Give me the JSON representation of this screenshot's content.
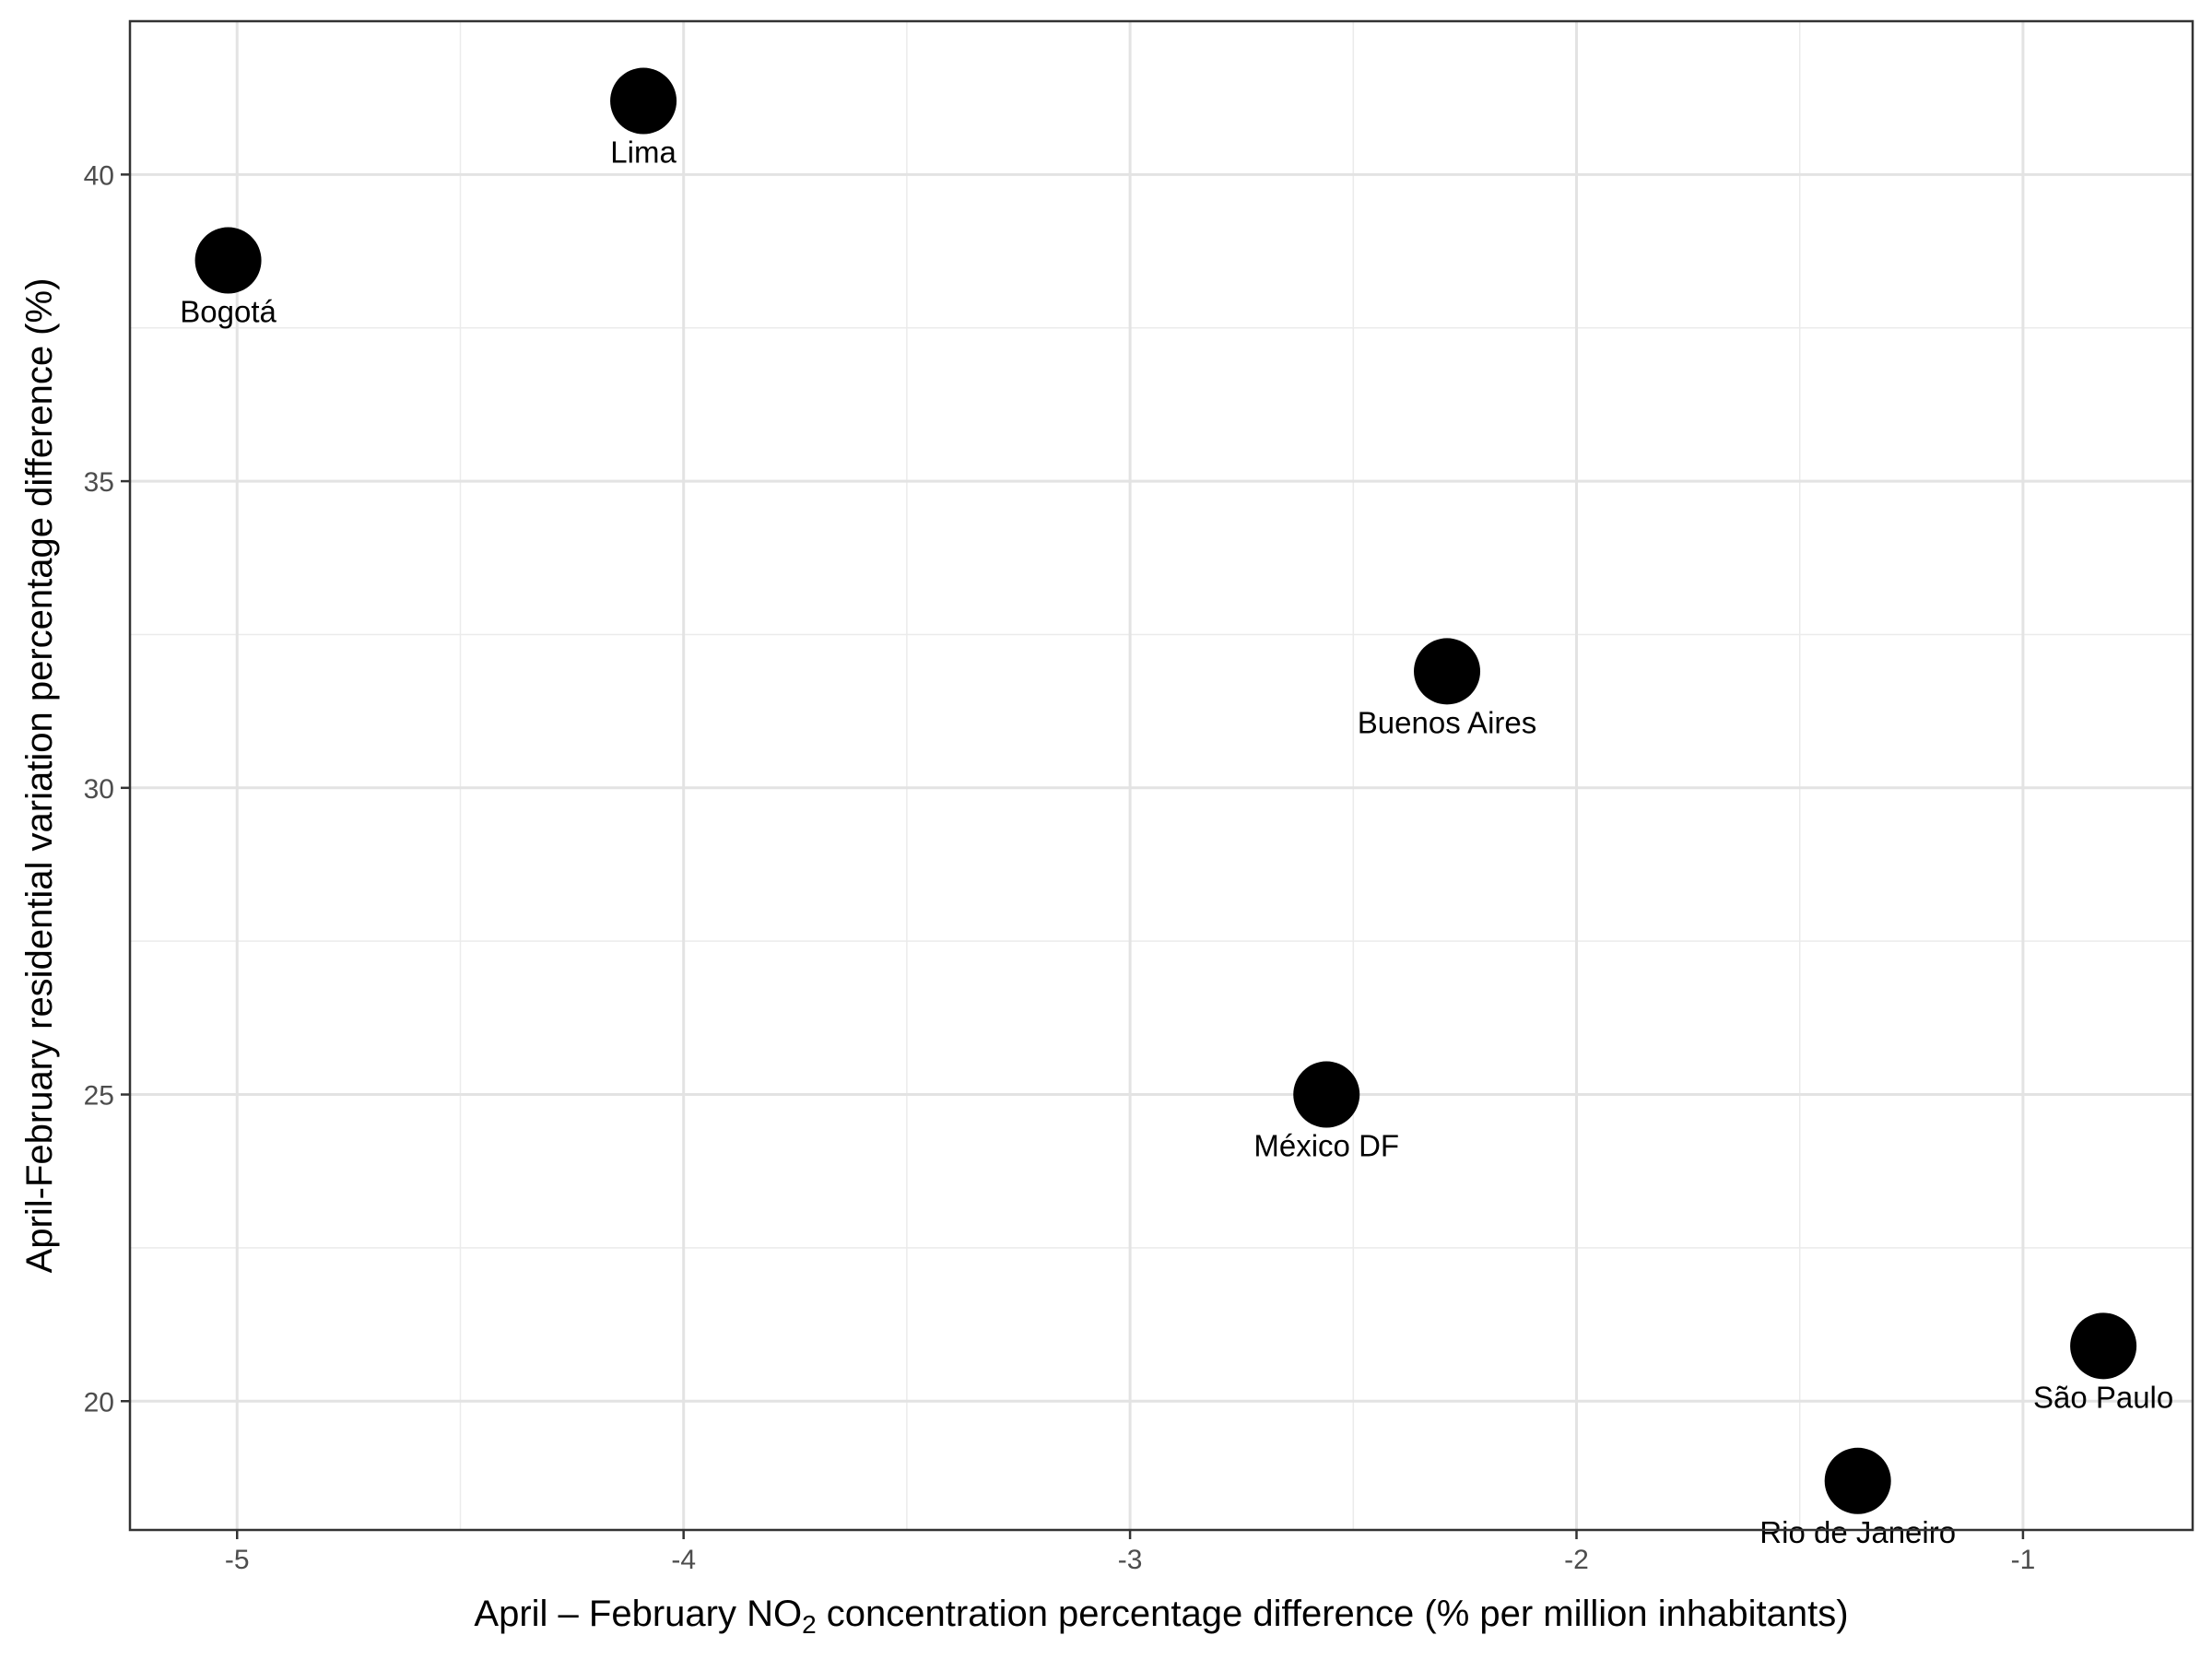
{
  "chart_data": {
    "type": "scatter",
    "title": "",
    "xlabel": {
      "prefix": "April – February NO",
      "subscript": "2",
      "suffix": " concentration percentage difference (% per million inhabitants)"
    },
    "ylabel": "April-February residential variation percentage difference (%)",
    "xlim": [
      -5.24,
      -0.62
    ],
    "ylim": [
      17.9,
      42.5
    ],
    "xticks": [
      -5,
      -4,
      -3,
      -2,
      -1
    ],
    "yticks": [
      20,
      25,
      30,
      35,
      40
    ],
    "xtick_labels": [
      "-5",
      "-4",
      "-3",
      "-2",
      "-1"
    ],
    "ytick_labels": [
      "20",
      "25",
      "30",
      "35",
      "40"
    ],
    "grid": true,
    "legend": "none",
    "point_color": "#000000",
    "points": [
      {
        "label": "Bogotá",
        "x": -5.02,
        "y": 38.6
      },
      {
        "label": "Lima",
        "x": -4.09,
        "y": 41.2
      },
      {
        "label": "Buenos Aires",
        "x": -2.29,
        "y": 31.9
      },
      {
        "label": "México DF",
        "x": -2.56,
        "y": 25.0
      },
      {
        "label": "São Paulo",
        "x": -0.82,
        "y": 20.9
      },
      {
        "label": "Rio de Janeiro",
        "x": -1.37,
        "y": 18.7
      }
    ]
  }
}
